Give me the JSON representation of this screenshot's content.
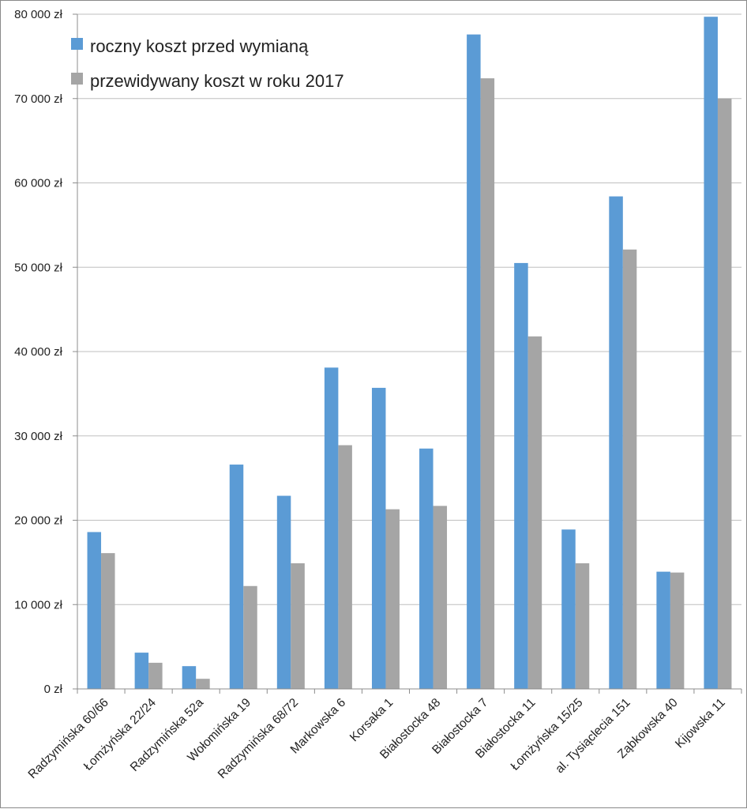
{
  "chart_data": {
    "type": "bar",
    "title": "",
    "xlabel": "",
    "ylabel": "",
    "ylim": [
      0,
      80000
    ],
    "y_tick_step": 10000,
    "y_tick_labels": [
      "0 zł",
      "10 000 zł",
      "20 000 zł",
      "30 000 zł",
      "40 000 zł",
      "50 000 zł",
      "60 000 zł",
      "70 000 zł",
      "80 000 zł"
    ],
    "grid": true,
    "legend_position": "top-left",
    "categories": [
      "Radzymińska 60/66",
      "Łomżyńska 22/24",
      "Radzymińska 52a",
      "Wołomińska 19",
      "Radzymińska 68/72",
      "Markowska 6",
      "Korsaka 1",
      "Białostocka 48",
      "Białostocka 7",
      "Białostocka 11",
      "Łomżyńska 15/25",
      "al. Tysiąclecia 151",
      "Ząbkowska 40",
      "Kijowska 11"
    ],
    "series": [
      {
        "name": "roczny koszt przed wymianą",
        "color": "#5b9bd5",
        "values": [
          18600,
          4300,
          2700,
          26600,
          22900,
          38100,
          35700,
          28500,
          77600,
          50500,
          18900,
          58400,
          13900,
          79700
        ]
      },
      {
        "name": "przewidywany koszt w roku 2017",
        "color": "#a5a5a5",
        "values": [
          16100,
          3100,
          1200,
          12200,
          14900,
          28900,
          21300,
          21700,
          72400,
          41800,
          14900,
          52100,
          13800,
          70000
        ]
      }
    ]
  }
}
